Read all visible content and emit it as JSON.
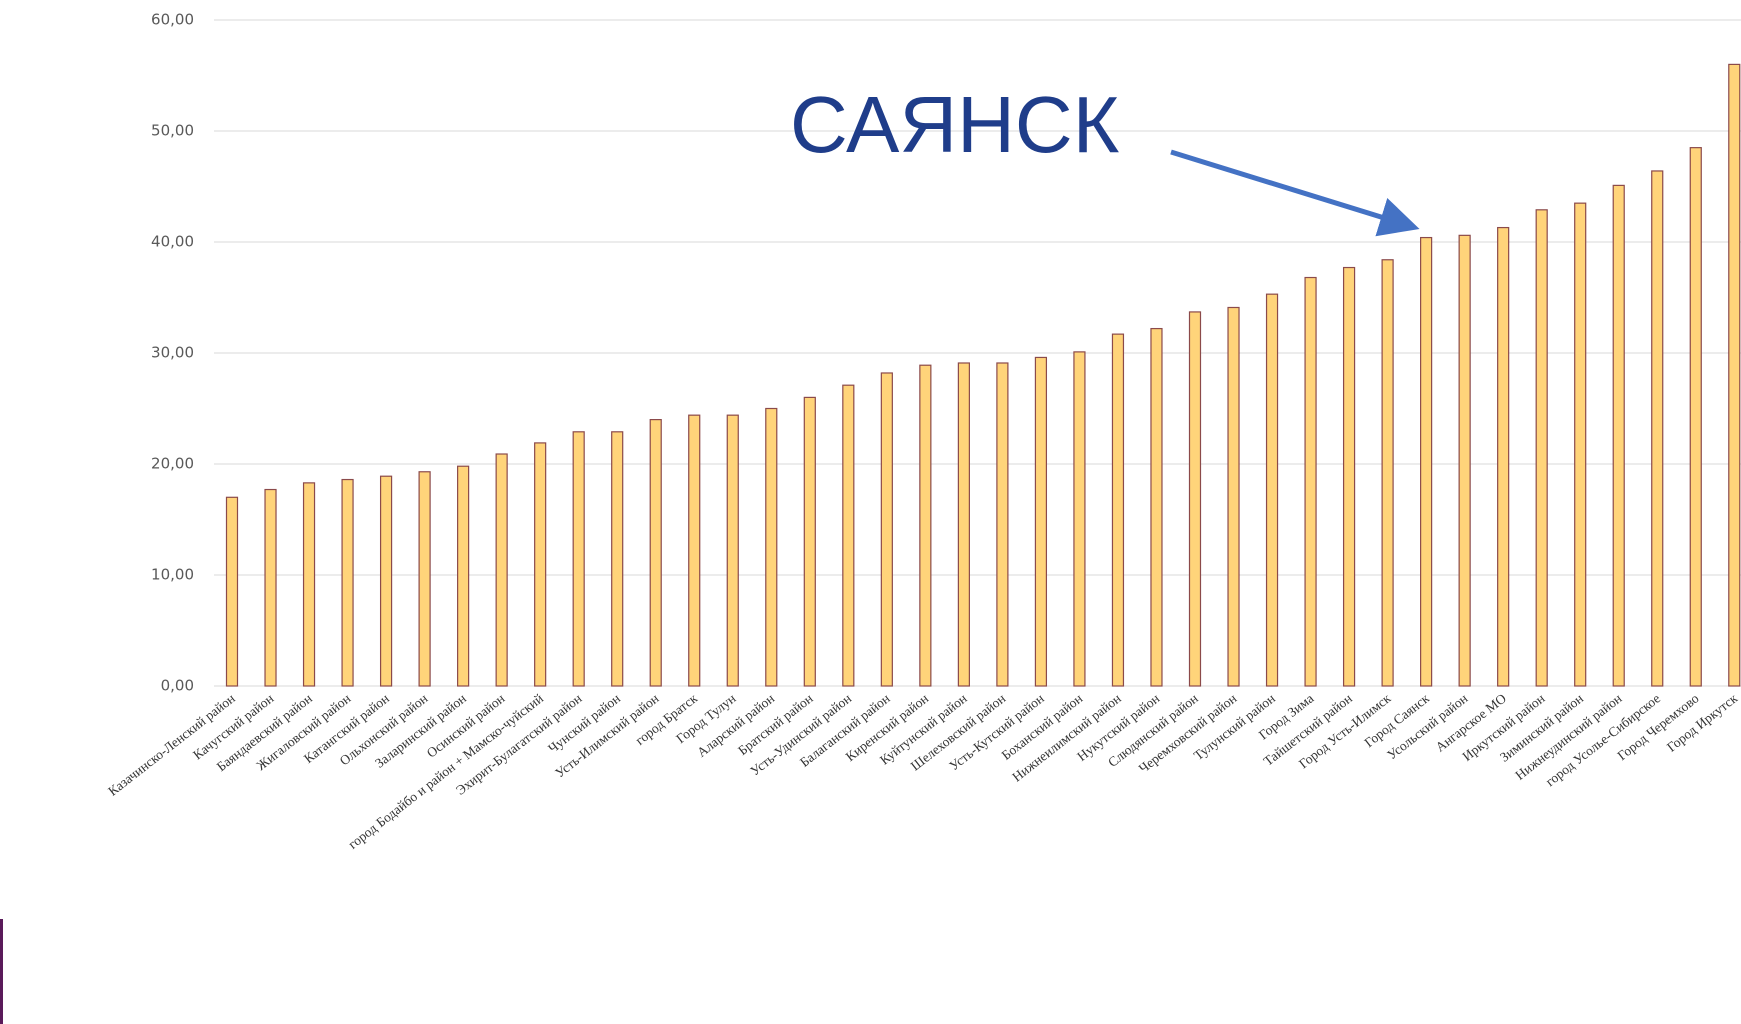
{
  "chart_data": {
    "type": "bar",
    "annotation": "САЯНСК",
    "categories": [
      "Казачинско-Ленский район",
      "Качугский район",
      "Баяндаевский район",
      "Жигаловский район",
      "Катангский район",
      "Ольхонский район",
      "Заларинский район",
      "Осинский район",
      "город Бодайбо и район + Мамско-чуйский",
      "Эхирит-Булагатский район",
      "Чунский район",
      "Усть-Илимский район",
      "город Братск",
      "Город Тулун",
      "Аларский район",
      "Братский район",
      "Усть-Удинский район",
      "Балаганский район",
      "Киренский район",
      "Куйтунский район",
      "Шелеховский район",
      "Усть-Кутский район",
      "Боханский район",
      "Нижнеилимский район",
      "Нукутский район",
      "Слюдянский район",
      "Черемховский район",
      "Тулунский район",
      "Город Зима",
      "Тайшетский район",
      "Город Усть-Илимск",
      "Город Саянск",
      "Усольский район",
      "Ангарское МО",
      "Иркутский район",
      "Зиминский район",
      "Нижнеудинский район",
      "город Усолье-Сибирское",
      "Город Черемхово",
      "Город Иркутск"
    ],
    "values": [
      17.0,
      17.7,
      18.3,
      18.6,
      18.9,
      19.3,
      19.8,
      20.9,
      21.9,
      22.9,
      22.9,
      24.0,
      24.4,
      24.4,
      25.0,
      26.0,
      27.1,
      28.2,
      28.9,
      29.1,
      29.1,
      29.6,
      30.1,
      31.7,
      32.2,
      33.7,
      34.1,
      35.3,
      36.8,
      37.7,
      38.4,
      40.4,
      40.6,
      41.3,
      42.9,
      43.5,
      45.1,
      46.4,
      48.5,
      56.0
    ],
    "color": "#ffd47a",
    "ylim": [
      0,
      60
    ],
    "yticks": [
      {
        "value": 0,
        "label": "0,00"
      },
      {
        "value": 10,
        "label": "10,00"
      },
      {
        "value": 20,
        "label": "20,00"
      },
      {
        "value": 30,
        "label": "30,00"
      },
      {
        "value": 40,
        "label": "40,00"
      },
      {
        "value": 50,
        "label": "50,00"
      },
      {
        "value": 60,
        "label": "60,00"
      }
    ],
    "grid": true
  }
}
